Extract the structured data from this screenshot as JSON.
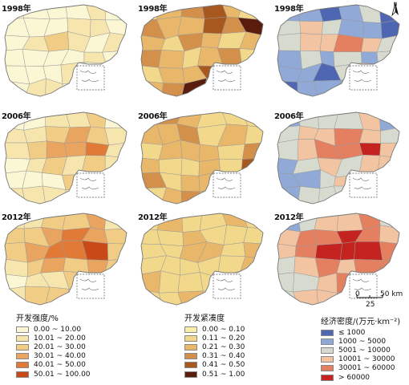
{
  "panel_years": [
    "1998年",
    "1998年",
    "1998年",
    "2006年",
    "2006年",
    "2006年",
    "2012年",
    "2012年",
    "2012年"
  ],
  "palettes": {
    "intensity": [
      "#fbf6d3",
      "#f6e6ae",
      "#f0cc85",
      "#e9a55f",
      "#e07a36",
      "#c94a17"
    ],
    "compactness": [
      "#f7eeaa",
      "#f2d88a",
      "#e8b76a",
      "#d2904a",
      "#a6581f",
      "#5a1c0c"
    ],
    "economy": [
      "#4f67b2",
      "#90a9d6",
      "#d7dbcf",
      "#f2c4a1",
      "#e47f5f",
      "#c42320"
    ]
  },
  "scenes": [
    [
      0,
      0,
      0,
      0,
      1,
      0,
      0,
      0,
      0,
      1,
      1,
      0,
      0,
      1,
      2,
      1,
      0,
      1,
      0,
      0,
      0,
      0,
      1,
      0,
      0,
      0,
      0,
      1,
      0,
      0,
      0,
      1,
      1,
      0,
      0,
      0
    ],
    [
      1,
      2,
      3,
      4,
      2,
      1,
      3,
      2,
      2,
      4,
      3,
      5,
      2,
      1,
      3,
      2,
      1,
      2,
      3,
      2,
      1,
      2,
      3,
      1,
      1,
      2,
      2,
      4,
      3,
      1,
      2,
      3,
      5,
      2,
      1,
      3
    ],
    [
      1,
      1,
      0,
      1,
      2,
      0,
      2,
      3,
      2,
      1,
      1,
      0,
      2,
      3,
      3,
      4,
      3,
      2,
      1,
      2,
      1,
      2,
      1,
      2,
      1,
      1,
      0,
      2,
      3,
      2,
      0,
      1,
      1,
      1,
      0,
      1
    ],
    [
      0,
      0,
      1,
      1,
      2,
      0,
      1,
      1,
      2,
      3,
      2,
      1,
      1,
      2,
      3,
      3,
      4,
      1,
      0,
      1,
      2,
      1,
      2,
      1,
      0,
      0,
      0,
      2,
      1,
      0,
      1,
      1,
      1,
      1,
      0,
      1
    ],
    [
      2,
      3,
      2,
      1,
      1,
      1,
      2,
      2,
      3,
      1,
      2,
      1,
      1,
      2,
      2,
      2,
      1,
      3,
      2,
      1,
      1,
      2,
      1,
      4,
      3,
      1,
      2,
      2,
      1,
      1,
      1,
      2,
      3,
      2,
      4,
      1
    ],
    [
      1,
      2,
      2,
      2,
      3,
      1,
      2,
      3,
      3,
      4,
      3,
      2,
      2,
      3,
      4,
      4,
      5,
      3,
      1,
      2,
      3,
      2,
      3,
      3,
      1,
      1,
      2,
      3,
      2,
      1,
      1,
      2,
      2,
      2,
      1,
      2
    ],
    [
      1,
      1,
      2,
      2,
      3,
      1,
      2,
      2,
      3,
      4,
      3,
      2,
      2,
      3,
      4,
      4,
      5,
      2,
      1,
      2,
      3,
      2,
      3,
      2,
      0,
      1,
      1,
      2,
      2,
      1,
      1,
      2,
      2,
      1,
      1,
      1
    ],
    [
      1,
      2,
      1,
      1,
      2,
      1,
      1,
      1,
      2,
      1,
      1,
      1,
      1,
      1,
      2,
      2,
      1,
      2,
      1,
      1,
      1,
      1,
      1,
      2,
      2,
      1,
      1,
      1,
      1,
      1,
      1,
      1,
      2,
      1,
      4,
      1
    ],
    [
      1,
      2,
      3,
      3,
      4,
      2,
      3,
      4,
      4,
      5,
      4,
      3,
      3,
      4,
      5,
      5,
      5,
      4,
      2,
      3,
      4,
      3,
      4,
      4,
      2,
      2,
      3,
      4,
      3,
      2,
      2,
      3,
      3,
      3,
      2,
      3
    ]
  ],
  "legend_intensity": {
    "title": "开发强度/%",
    "items": [
      "0.00 ~ 10.00",
      "10.01 ~ 20.00",
      "20.01 ~ 30.00",
      "30.01 ~ 40.00",
      "40.01 ~ 50.00",
      "50.01 ~ 100.00"
    ]
  },
  "legend_compactness": {
    "title": "开发紧凑度",
    "items": [
      "0.00 ~ 0.10",
      "0.11 ~ 0.20",
      "0.21 ~ 0.30",
      "0.31 ~ 0.40",
      "0.41 ~ 0.50",
      "0.51 ~ 1.00"
    ]
  },
  "legend_economy": {
    "title": "经济密度/(万元·km⁻²)",
    "items": [
      "≤ 1000",
      "1000 ~ 5000",
      "5001 ~ 10000",
      "10001 ~ 30000",
      "30001 ~ 60000",
      "> 60000"
    ]
  },
  "scale": {
    "zero": "0",
    "label": "50 km",
    "mid": "25"
  },
  "north_label": "N",
  "colors": {
    "outline": "#777777",
    "boundary": "#9a9a9a",
    "inset": "#555555"
  }
}
